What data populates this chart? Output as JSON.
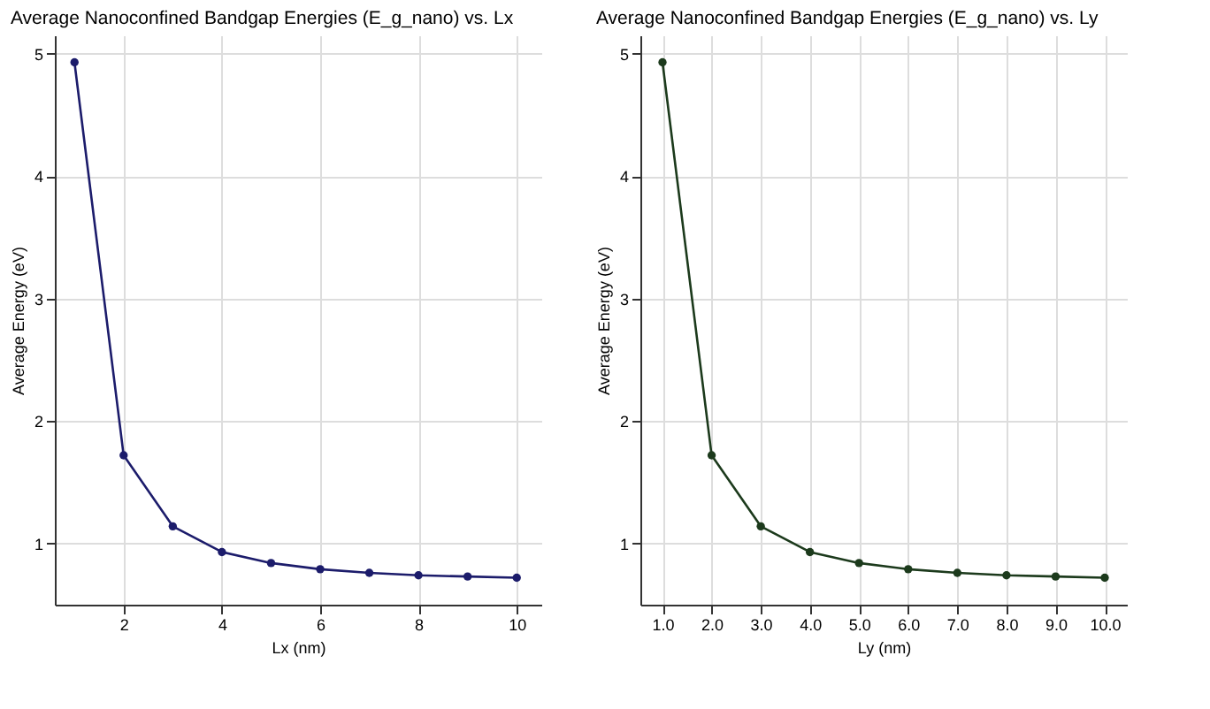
{
  "chart_data": [
    {
      "type": "line",
      "title": "Average Nanoconfined Bandgap Energies (E_g_nano) vs. Lx",
      "xlabel": "Lx (nm)",
      "ylabel": "Average Energy (eV)",
      "x": [
        1,
        2,
        3,
        4,
        5,
        6,
        7,
        8,
        9,
        10
      ],
      "series": [
        {
          "color": "#1c1c6b",
          "values": [
            4.93,
            1.72,
            1.14,
            0.93,
            0.84,
            0.79,
            0.76,
            0.74,
            0.73,
            0.72
          ]
        }
      ],
      "xlim": [
        0.6,
        10.5
      ],
      "xticks": [
        2,
        4,
        6,
        8,
        10
      ],
      "ylim": [
        0.5,
        5.15
      ],
      "yticks": [
        1,
        2,
        3,
        4,
        5
      ],
      "grid": true,
      "marker": "circle",
      "line_style": "solid"
    },
    {
      "type": "line",
      "title": "Average Nanoconfined Bandgap Energies (E_g_nano) vs. Ly",
      "xlabel": "Ly (nm)",
      "ylabel": "Average Energy (eV)",
      "x": [
        1,
        2,
        3,
        4,
        5,
        6,
        7,
        8,
        9,
        10
      ],
      "series": [
        {
          "color": "#1c3a1c",
          "values": [
            4.93,
            1.72,
            1.14,
            0.93,
            0.84,
            0.79,
            0.76,
            0.74,
            0.73,
            0.72
          ]
        }
      ],
      "xlim": [
        0.55,
        10.45
      ],
      "xticks": [
        {
          "value": 1,
          "label": "1.0"
        },
        {
          "value": 2,
          "label": "2.0"
        },
        {
          "value": 3,
          "label": "3.0"
        },
        {
          "value": 4,
          "label": "4.0"
        },
        {
          "value": 5,
          "label": "5.0"
        },
        {
          "value": 6,
          "label": "6.0"
        },
        {
          "value": 7,
          "label": "7.0"
        },
        {
          "value": 8,
          "label": "8.0"
        },
        {
          "value": 9,
          "label": "9.0"
        },
        {
          "value": 10,
          "label": "10.0"
        }
      ],
      "ylim": [
        0.5,
        5.15
      ],
      "yticks": [
        1,
        2,
        3,
        4,
        5
      ],
      "grid": true,
      "marker": "circle",
      "line_style": "solid"
    }
  ]
}
